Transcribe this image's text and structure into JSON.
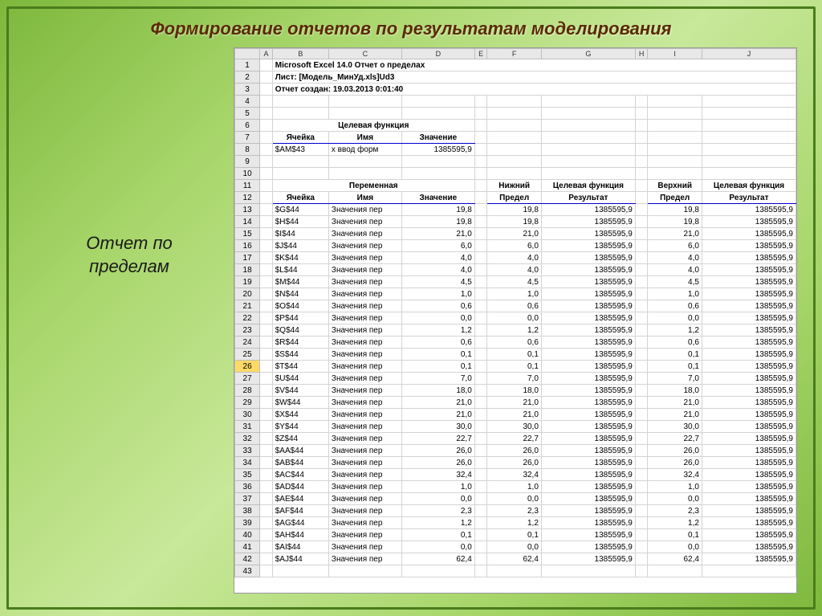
{
  "slide": {
    "title": "Формирование отчетов по результатам моделирования",
    "left_label_1": "Отчет по",
    "left_label_2": "пределам"
  },
  "excel": {
    "col_letters": [
      "A",
      "B",
      "C",
      "D",
      "E",
      "F",
      "G",
      "H",
      "I",
      "J"
    ],
    "meta": {
      "r1": "Microsoft Excel 14.0 Отчет о пределах",
      "r2": "Лист: [Модель_МинУд.xls]Ud3",
      "r3": "Отчет создан: 19.03.2013 0:01:40"
    },
    "objective": {
      "group": "Целевая функция",
      "h_cell": "Ячейка",
      "h_name": "Имя",
      "h_val": "Значение",
      "cell": "$AM$43",
      "name": "х ввод форм",
      "val": "1385595,9"
    },
    "var_headers": {
      "group_var": "Переменная",
      "h_cell": "Ячейка",
      "h_name": "Имя",
      "h_val": "Значение",
      "group_low": "Нижний",
      "h_low": "Предел",
      "group_lowobj": "Целевая функция",
      "h_lowobj": "Результат",
      "group_up": "Верхний",
      "h_up": "Предел",
      "group_upobj": "Целевая функция",
      "h_upobj": "Результат"
    },
    "selected_row": 26,
    "rows": [
      {
        "n": 13,
        "c": "$G$44",
        "nm": "Значения пер",
        "v": "19,8",
        "lo": "19,8",
        "lr": "1385595,9",
        "up": "19,8",
        "ur": "1385595,9"
      },
      {
        "n": 14,
        "c": "$H$44",
        "nm": "Значения пер",
        "v": "19,8",
        "lo": "19,8",
        "lr": "1385595,9",
        "up": "19,8",
        "ur": "1385595,9"
      },
      {
        "n": 15,
        "c": "$I$44",
        "nm": "Значения пер",
        "v": "21,0",
        "lo": "21,0",
        "lr": "1385595,9",
        "up": "21,0",
        "ur": "1385595,9"
      },
      {
        "n": 16,
        "c": "$J$44",
        "nm": "Значения пер",
        "v": "6,0",
        "lo": "6,0",
        "lr": "1385595,9",
        "up": "6,0",
        "ur": "1385595,9"
      },
      {
        "n": 17,
        "c": "$K$44",
        "nm": "Значения пер",
        "v": "4,0",
        "lo": "4,0",
        "lr": "1385595,9",
        "up": "4,0",
        "ur": "1385595,9"
      },
      {
        "n": 18,
        "c": "$L$44",
        "nm": "Значения пер",
        "v": "4,0",
        "lo": "4,0",
        "lr": "1385595,9",
        "up": "4,0",
        "ur": "1385595,9"
      },
      {
        "n": 19,
        "c": "$M$44",
        "nm": "Значения пер",
        "v": "4,5",
        "lo": "4,5",
        "lr": "1385595,9",
        "up": "4,5",
        "ur": "1385595,9"
      },
      {
        "n": 20,
        "c": "$N$44",
        "nm": "Значения пер",
        "v": "1,0",
        "lo": "1,0",
        "lr": "1385595,9",
        "up": "1,0",
        "ur": "1385595,9"
      },
      {
        "n": 21,
        "c": "$O$44",
        "nm": "Значения пер",
        "v": "0,6",
        "lo": "0,6",
        "lr": "1385595,9",
        "up": "0,6",
        "ur": "1385595,9"
      },
      {
        "n": 22,
        "c": "$P$44",
        "nm": "Значения пер",
        "v": "0,0",
        "lo": "0,0",
        "lr": "1385595,9",
        "up": "0,0",
        "ur": "1385595,9"
      },
      {
        "n": 23,
        "c": "$Q$44",
        "nm": "Значения пер",
        "v": "1,2",
        "lo": "1,2",
        "lr": "1385595,9",
        "up": "1,2",
        "ur": "1385595,9"
      },
      {
        "n": 24,
        "c": "$R$44",
        "nm": "Значения пер",
        "v": "0,6",
        "lo": "0,6",
        "lr": "1385595,9",
        "up": "0,6",
        "ur": "1385595,9"
      },
      {
        "n": 25,
        "c": "$S$44",
        "nm": "Значения пер",
        "v": "0,1",
        "lo": "0,1",
        "lr": "1385595,9",
        "up": "0,1",
        "ur": "1385595,9"
      },
      {
        "n": 26,
        "c": "$T$44",
        "nm": "Значения пер",
        "v": "0,1",
        "lo": "0,1",
        "lr": "1385595,9",
        "up": "0,1",
        "ur": "1385595,9"
      },
      {
        "n": 27,
        "c": "$U$44",
        "nm": "Значения пер",
        "v": "7,0",
        "lo": "7,0",
        "lr": "1385595,9",
        "up": "7,0",
        "ur": "1385595,9"
      },
      {
        "n": 28,
        "c": "$V$44",
        "nm": "Значения пер",
        "v": "18,0",
        "lo": "18,0",
        "lr": "1385595,9",
        "up": "18,0",
        "ur": "1385595,9"
      },
      {
        "n": 29,
        "c": "$W$44",
        "nm": "Значения пер",
        "v": "21,0",
        "lo": "21,0",
        "lr": "1385595,9",
        "up": "21,0",
        "ur": "1385595,9"
      },
      {
        "n": 30,
        "c": "$X$44",
        "nm": "Значения пер",
        "v": "21,0",
        "lo": "21,0",
        "lr": "1385595,9",
        "up": "21,0",
        "ur": "1385595,9"
      },
      {
        "n": 31,
        "c": "$Y$44",
        "nm": "Значения пер",
        "v": "30,0",
        "lo": "30,0",
        "lr": "1385595,9",
        "up": "30,0",
        "ur": "1385595,9"
      },
      {
        "n": 32,
        "c": "$Z$44",
        "nm": "Значения пер",
        "v": "22,7",
        "lo": "22,7",
        "lr": "1385595,9",
        "up": "22,7",
        "ur": "1385595,9"
      },
      {
        "n": 33,
        "c": "$AA$44",
        "nm": "Значения пер",
        "v": "26,0",
        "lo": "26,0",
        "lr": "1385595,9",
        "up": "26,0",
        "ur": "1385595,9"
      },
      {
        "n": 34,
        "c": "$AB$44",
        "nm": "Значения пер",
        "v": "26,0",
        "lo": "26,0",
        "lr": "1385595,9",
        "up": "26,0",
        "ur": "1385595,9"
      },
      {
        "n": 35,
        "c": "$AC$44",
        "nm": "Значения пер",
        "v": "32,4",
        "lo": "32,4",
        "lr": "1385595,9",
        "up": "32,4",
        "ur": "1385595,9"
      },
      {
        "n": 36,
        "c": "$AD$44",
        "nm": "Значения пер",
        "v": "1,0",
        "lo": "1,0",
        "lr": "1385595,9",
        "up": "1,0",
        "ur": "1385595,9"
      },
      {
        "n": 37,
        "c": "$AE$44",
        "nm": "Значения пер",
        "v": "0,0",
        "lo": "0,0",
        "lr": "1385595,9",
        "up": "0,0",
        "ur": "1385595,9"
      },
      {
        "n": 38,
        "c": "$AF$44",
        "nm": "Значения пер",
        "v": "2,3",
        "lo": "2,3",
        "lr": "1385595,9",
        "up": "2,3",
        "ur": "1385595,9"
      },
      {
        "n": 39,
        "c": "$AG$44",
        "nm": "Значения пер",
        "v": "1,2",
        "lo": "1,2",
        "lr": "1385595,9",
        "up": "1,2",
        "ur": "1385595,9"
      },
      {
        "n": 40,
        "c": "$AH$44",
        "nm": "Значения пер",
        "v": "0,1",
        "lo": "0,1",
        "lr": "1385595,9",
        "up": "0,1",
        "ur": "1385595,9"
      },
      {
        "n": 41,
        "c": "$AI$44",
        "nm": "Значения пер",
        "v": "0,0",
        "lo": "0,0",
        "lr": "1385595,9",
        "up": "0,0",
        "ur": "1385595,9"
      },
      {
        "n": 42,
        "c": "$AJ$44",
        "nm": "Значения пер",
        "v": "62,4",
        "lo": "62,4",
        "lr": "1385595,9",
        "up": "62,4",
        "ur": "1385595,9"
      }
    ]
  },
  "colors": {
    "header_blue": "#0000cc",
    "grid_border": "#d4d4d4",
    "header_bg": "#e8e8e8"
  }
}
